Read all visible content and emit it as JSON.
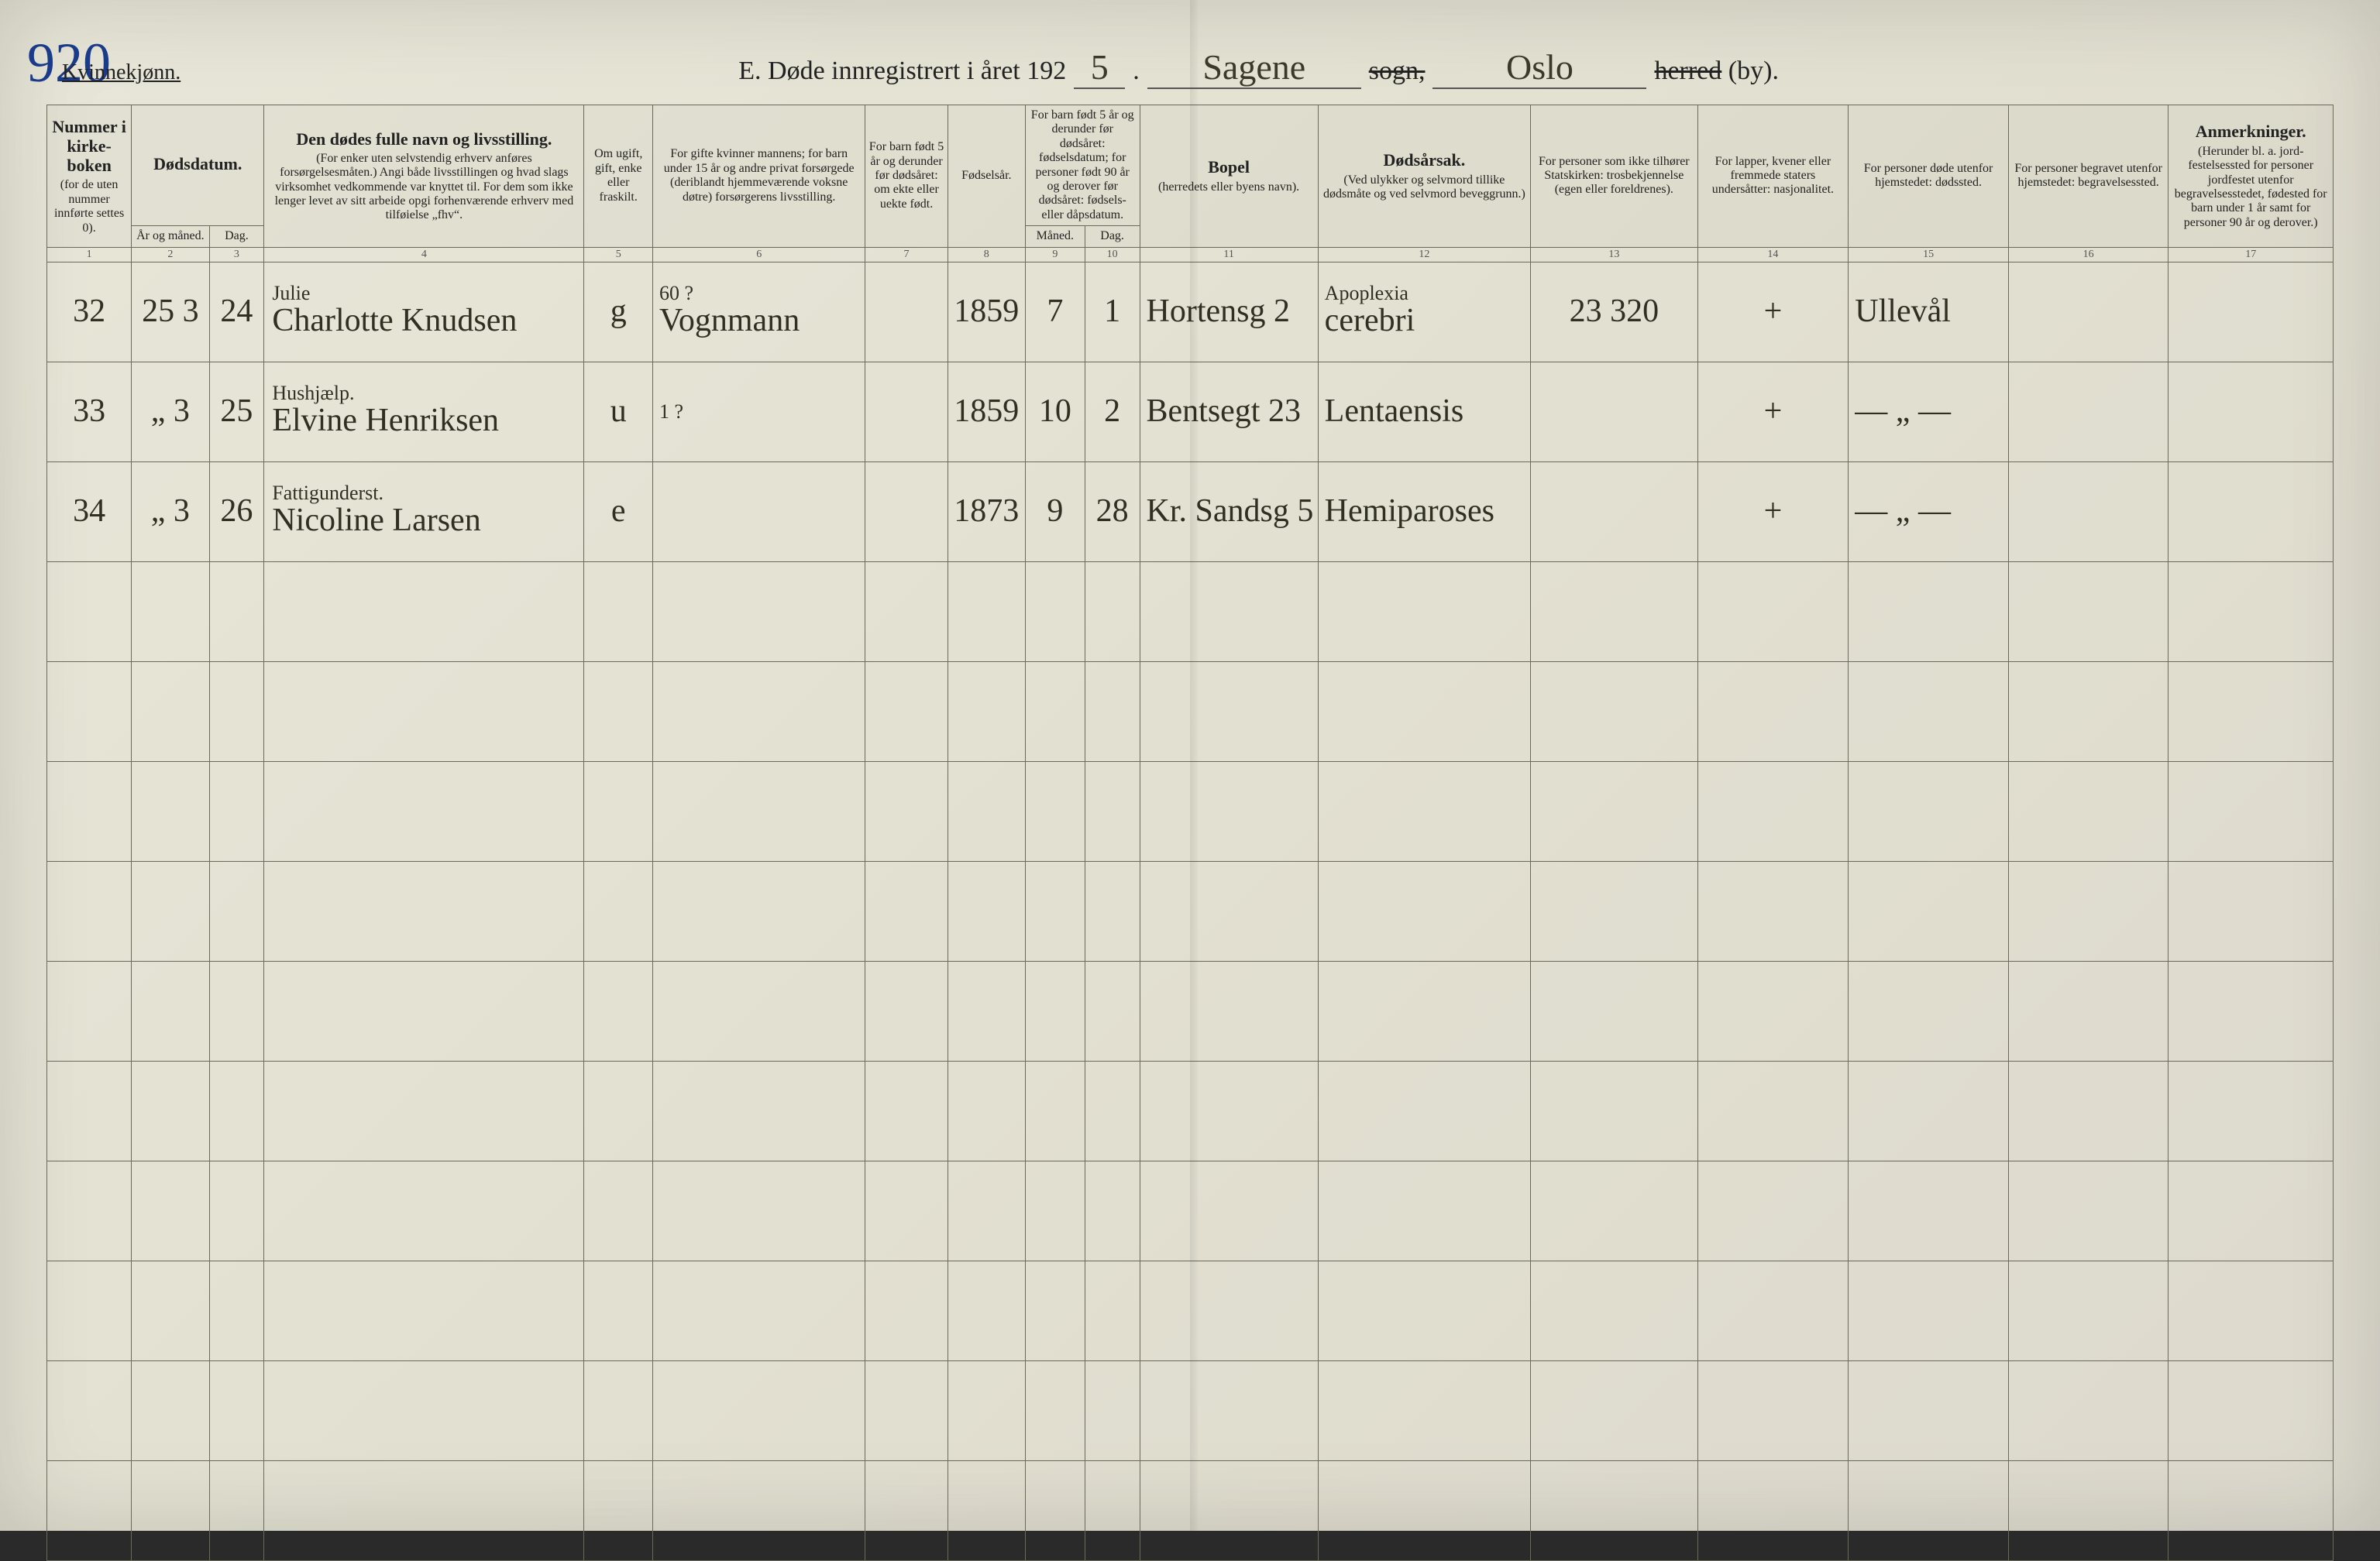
{
  "page": {
    "gender_label": "Kvinnekjønn.",
    "page_number": "920",
    "title_prefix": "E.  Døde innregistrert i året 192",
    "year_suffix": "5",
    "parish": "Sagene",
    "sogn_label": "sogn,",
    "district": "Oslo",
    "herred_label": "herred (by)."
  },
  "columns": {
    "c1": {
      "title": "Nummer i kirke­boken",
      "sub": "(for de uten nummer innførte settes 0)."
    },
    "c2a": {
      "title": "Dødsdatum.",
      "sub": "År og måned."
    },
    "c2b": {
      "title": "",
      "sub": "Dag."
    },
    "c4": {
      "title": "Den dødes fulle navn og livsstilling.",
      "sub": "(For enker uten selvstendig erhverv anføres forsørgelsesmåten.) Angi både livsstillingen og hvad slags virksomhet vedkommende var knyttet til. For dem som ikke lenger levet av sitt arbeide opgi forhenværende erhverv med tilføielse „fhv“."
    },
    "c5": {
      "title": "Om ugift, gift, enke eller fraskilt.",
      "sub": ""
    },
    "c6": {
      "title": "For gifte kvinner mannens; for barn under 15 år og andre privat forsørgede (der­iblandt hjemmeværende voksne døtre) forsørgerens livsstilling.",
      "sub": ""
    },
    "c7": {
      "title": "For barn født 5 år og derunder før døds­året: om ekte eller uekte født.",
      "sub": ""
    },
    "c8": {
      "title": "Fødsels­år.",
      "sub": ""
    },
    "c9": {
      "title": "For barn født 5 år og der­under før dødsåret: fødselsdatum; for personer født 90 år og derover før dødsåret: fødsels- eller dåpsdatum.",
      "sub": "Måned."
    },
    "c10": {
      "title": "",
      "sub": "Dag."
    },
    "c11": {
      "title": "Bopel",
      "sub": "(herredets eller byens navn)."
    },
    "c12": {
      "title": "Dødsårsak.",
      "sub": "(Ved ulykker og selv­mord tillike dødsmåte og ved selvmord beveggrunn.)"
    },
    "c13": {
      "title": "For personer som ikke tilhører Statskirken: trosbekjennelse",
      "sub": "(egen eller foreldrenes)."
    },
    "c14": {
      "title": "For lapper, kvener eller fremmede staters undersåtter: nasjonalitet.",
      "sub": ""
    },
    "c15": {
      "title": "For personer døde utenfor hjemstedet: dødssted.",
      "sub": ""
    },
    "c16": {
      "title": "For personer begravet utenfor hjemstedet: begravelsessted.",
      "sub": ""
    },
    "c17": {
      "title": "Anmerkninger.",
      "sub": "(Herunder bl. a. jord­festelsessted for per­soner jordfestet utenfor begravelsesstedet, føde­sted for barn under 1 år samt for personer 90 år og derover.)"
    }
  },
  "colnums": [
    "1",
    "2",
    "3",
    "4",
    "5",
    "6",
    "7",
    "8",
    "9",
    "10",
    "11",
    "12",
    "13",
    "14",
    "15",
    "16",
    "17"
  ],
  "rows": [
    {
      "no": "32",
      "ym": "25 3",
      "day": "24",
      "name_note": "Julie",
      "name": "Charlotte Knudsen",
      "marital": "g",
      "provider_note": "60 ?",
      "provider": "Vognmann",
      "c7": "",
      "birth_year": "1859",
      "bm": "7",
      "bd": "1",
      "residence": "Hortensg 2",
      "cause_note": "Apoplexia",
      "cause": "cerebri",
      "c13": "23 320",
      "c14": "+",
      "c15": "Ullevål",
      "c16": "",
      "c17": ""
    },
    {
      "no": "33",
      "ym": "„ 3",
      "day": "25",
      "name_note": "Hushjælp.",
      "name": "Elvine Henriksen",
      "marital": "u",
      "provider_note": "1 ?",
      "provider": "",
      "c7": "",
      "birth_year": "1859",
      "bm": "10",
      "bd": "2",
      "residence": "Bentsegt 23",
      "cause_note": "",
      "cause": "Lentaensis",
      "c13": "",
      "c14": "+",
      "c15": "— „ —",
      "c16": "",
      "c17": ""
    },
    {
      "no": "34",
      "ym": "„ 3",
      "day": "26",
      "name_note": "Fattigunderst.",
      "name": "Nicoline Larsen",
      "marital": "e",
      "provider_note": "",
      "provider": "",
      "c7": "",
      "birth_year": "1873",
      "bm": "9",
      "bd": "28",
      "residence": "Kr. Sandsg 5",
      "cause_note": "",
      "cause": "Hemiparoses",
      "c13": "",
      "c14": "+",
      "c15": "— „ —",
      "c16": "",
      "c17": ""
    }
  ],
  "style": {
    "col_widths_pct": [
      3.7,
      3.4,
      2.4,
      14.0,
      3.0,
      9.3,
      3.6,
      3.4,
      2.6,
      2.4,
      7.8,
      9.3,
      7.3,
      6.6,
      7.0,
      7.0,
      7.2
    ],
    "paper_bg": "#e4e2d4",
    "line_color": "#6a6a5a",
    "ink_color": "#2f2f22",
    "script_font": "Brush Script MT",
    "blank_rows": 10
  }
}
